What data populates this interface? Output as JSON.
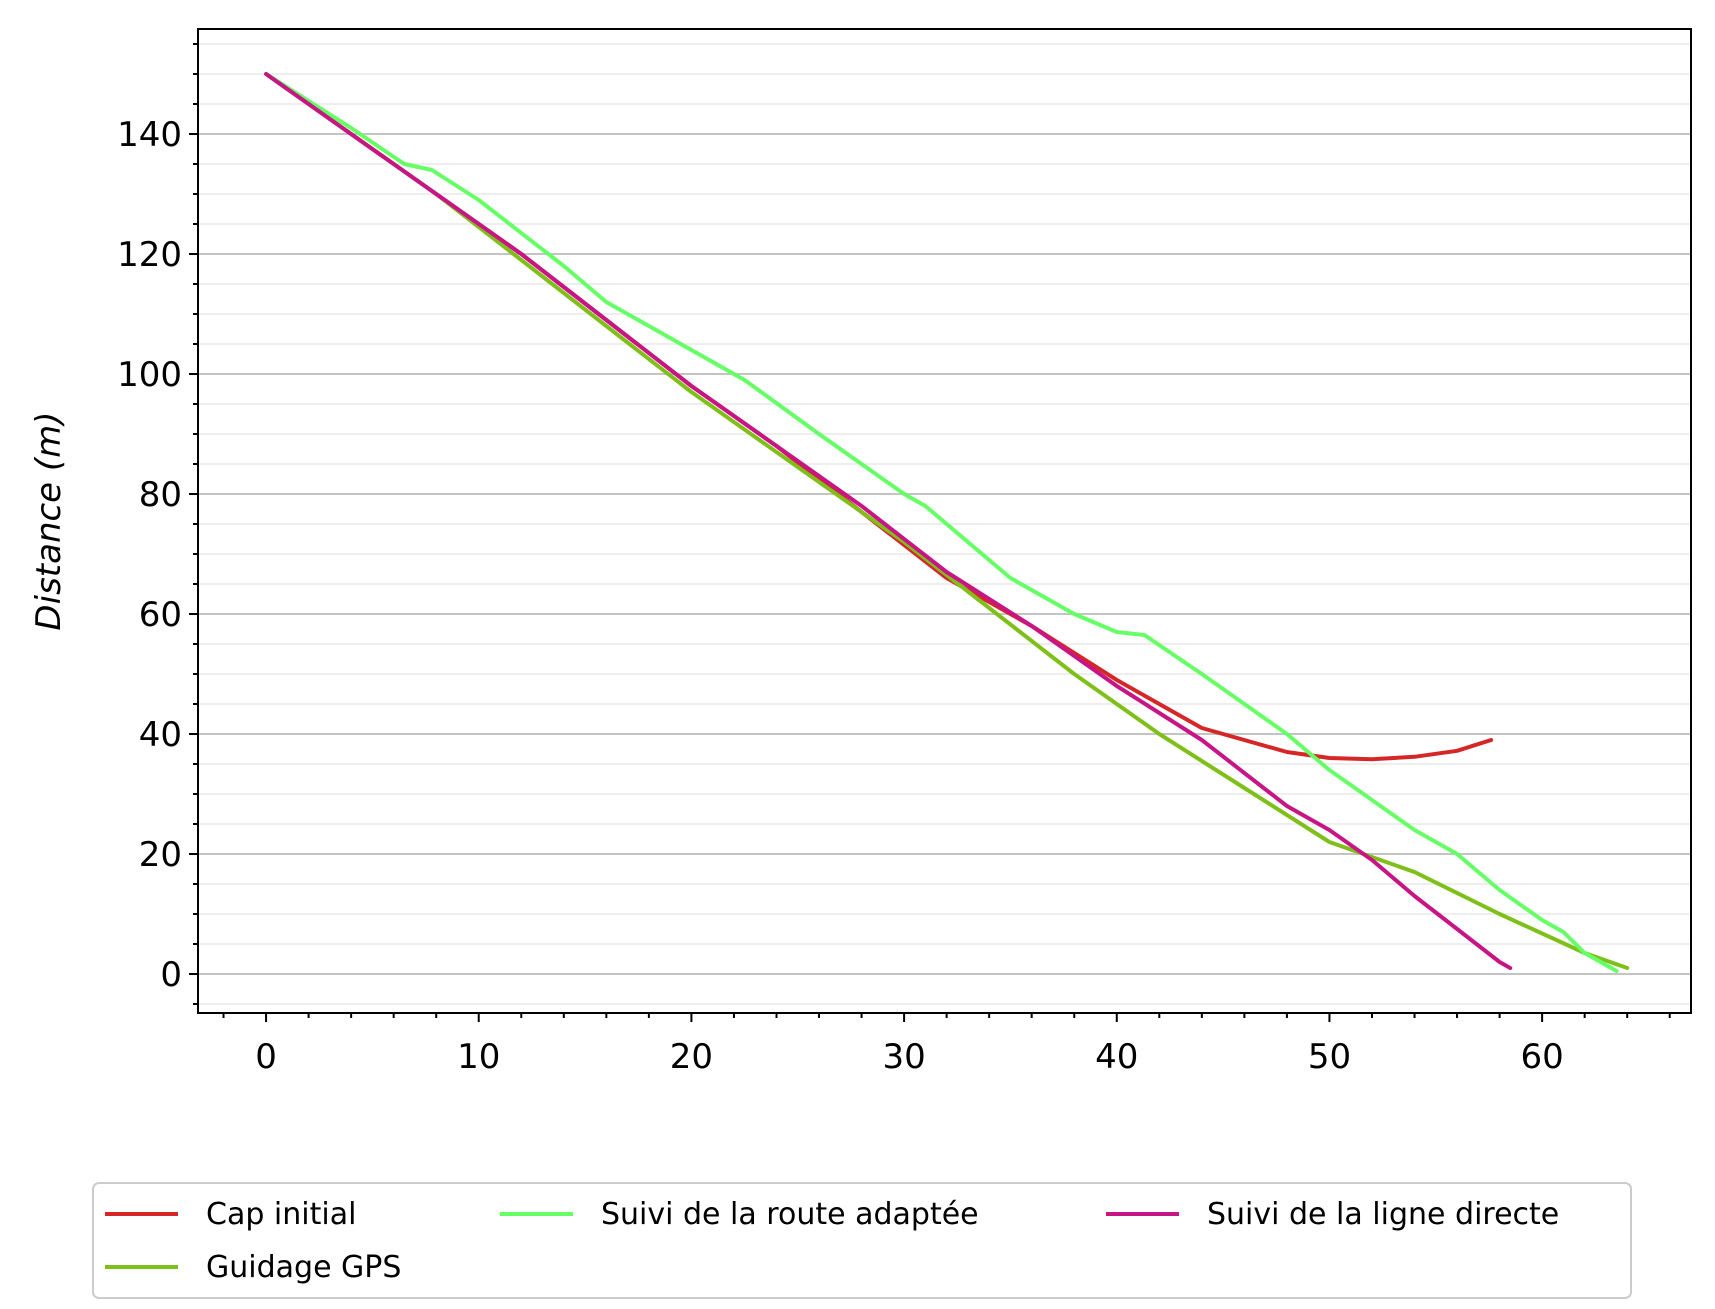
{
  "chart_data": {
    "type": "line",
    "title": "",
    "xlabel": "",
    "ylabel": "Distance (m)",
    "xlim": [
      -3.2,
      67.0
    ],
    "ylim": [
      -6.5,
      157.5
    ],
    "xticks": [
      0,
      10,
      20,
      30,
      40,
      50,
      60
    ],
    "yticks": [
      0,
      20,
      40,
      60,
      80,
      100,
      120,
      140
    ],
    "grid": {
      "y_major": true,
      "y_minor": true,
      "x": false
    },
    "legend": {
      "position": "bottom",
      "columns": 3
    },
    "series": [
      {
        "name": "Cap initial",
        "color": "#d62728",
        "points": [
          [
            0,
            150
          ],
          [
            4,
            140
          ],
          [
            8,
            130
          ],
          [
            12,
            120
          ],
          [
            16,
            109
          ],
          [
            20,
            98
          ],
          [
            24,
            88
          ],
          [
            28,
            77
          ],
          [
            32,
            66
          ],
          [
            36,
            58
          ],
          [
            40,
            49
          ],
          [
            44,
            41
          ],
          [
            48,
            37
          ],
          [
            50,
            36
          ],
          [
            52,
            35.8
          ],
          [
            54,
            36.2
          ],
          [
            56,
            37.2
          ],
          [
            57.6,
            39
          ]
        ]
      },
      {
        "name": "Guidage GPS",
        "color": "#7fbf1a",
        "points": [
          [
            0,
            150
          ],
          [
            4,
            140
          ],
          [
            8,
            130
          ],
          [
            12,
            119
          ],
          [
            16,
            108
          ],
          [
            20,
            97
          ],
          [
            22,
            92
          ],
          [
            26,
            82
          ],
          [
            30,
            72
          ],
          [
            34,
            61
          ],
          [
            38,
            50
          ],
          [
            42,
            40
          ],
          [
            46,
            31
          ],
          [
            50,
            22
          ],
          [
            54,
            17
          ],
          [
            58,
            10
          ],
          [
            62,
            3.5
          ],
          [
            64,
            1
          ]
        ]
      },
      {
        "name": "Suivi de la route adaptée",
        "color": "#66ff66",
        "points": [
          [
            0,
            150
          ],
          [
            4,
            141
          ],
          [
            6.5,
            135
          ],
          [
            7.8,
            134
          ],
          [
            10,
            129
          ],
          [
            14,
            118
          ],
          [
            16,
            112
          ],
          [
            17.5,
            109
          ],
          [
            18,
            108
          ],
          [
            20,
            104
          ],
          [
            22,
            100
          ],
          [
            22.5,
            99
          ],
          [
            26,
            90
          ],
          [
            30,
            80
          ],
          [
            31,
            78
          ],
          [
            35,
            66
          ],
          [
            38,
            60
          ],
          [
            40,
            57
          ],
          [
            41.3,
            56.5
          ],
          [
            44,
            50
          ],
          [
            46,
            45
          ],
          [
            48,
            40
          ],
          [
            50,
            34
          ],
          [
            52,
            29
          ],
          [
            54,
            24
          ],
          [
            56,
            20
          ],
          [
            58,
            14
          ],
          [
            60,
            9
          ],
          [
            61,
            7
          ],
          [
            62,
            3.5
          ],
          [
            63.5,
            0.5
          ]
        ]
      },
      {
        "name": "Suivi de la ligne directe",
        "color": "#c71585",
        "points": [
          [
            0,
            150
          ],
          [
            4,
            140
          ],
          [
            8,
            130
          ],
          [
            12,
            120
          ],
          [
            16,
            109
          ],
          [
            20,
            98
          ],
          [
            24,
            88
          ],
          [
            28,
            78
          ],
          [
            32,
            67
          ],
          [
            36,
            58
          ],
          [
            40,
            48
          ],
          [
            44,
            39
          ],
          [
            48,
            28
          ],
          [
            50,
            24
          ],
          [
            52,
            19
          ],
          [
            54,
            13
          ],
          [
            56,
            7.5
          ],
          [
            58,
            2
          ],
          [
            58.5,
            1
          ]
        ]
      }
    ]
  }
}
